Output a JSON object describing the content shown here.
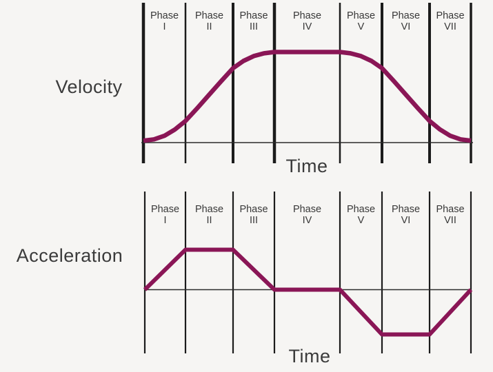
{
  "background": "#f6f5f3",
  "colors": {
    "curve": "#8a1656",
    "line": "#1b1b1b",
    "axis": "#2b2b2b",
    "text": "#3b3b3b"
  },
  "labels": {
    "velocity": "Velocity",
    "acceleration": "Acceleration",
    "time_top": "Time",
    "time_bottom": "Time",
    "phase_word": "Phase",
    "phase_numerals": [
      "I",
      "II",
      "III",
      "IV",
      "V",
      "VI",
      "VII"
    ]
  },
  "chart_data": [
    {
      "type": "line",
      "title": "",
      "xlabel": "Time",
      "ylabel": "Velocity",
      "categories": [
        "Phase I",
        "Phase II",
        "Phase III",
        "Phase IV",
        "Phase V",
        "Phase VI",
        "Phase VII"
      ],
      "x_unit": "phase-boundary index (0 = start of Phase I, 7 = end of Phase VII)",
      "ylim": [
        0,
        1
      ],
      "grid": "vertical phase boundary lines",
      "legend": "none",
      "series": [
        {
          "name": "Velocity",
          "x": [
            0,
            0.25,
            0.5,
            0.75,
            1,
            1.25,
            1.5,
            1.75,
            2,
            2.25,
            2.5,
            2.75,
            3,
            4,
            4.25,
            4.5,
            4.75,
            5,
            5.25,
            5.5,
            5.75,
            6,
            6.25,
            6.5,
            6.75,
            7
          ],
          "y": [
            0.01,
            0.025,
            0.065,
            0.135,
            0.23,
            0.375,
            0.525,
            0.675,
            0.82,
            0.9,
            0.955,
            0.985,
            1,
            1,
            0.985,
            0.955,
            0.9,
            0.82,
            0.675,
            0.525,
            0.375,
            0.23,
            0.135,
            0.065,
            0.025,
            0.01
          ]
        }
      ]
    },
    {
      "type": "line",
      "title": "",
      "xlabel": "Time",
      "ylabel": "Acceleration",
      "categories": [
        "Phase I",
        "Phase II",
        "Phase III",
        "Phase IV",
        "Phase V",
        "Phase VI",
        "Phase VII"
      ],
      "x_unit": "phase-boundary index (0 = start of Phase I, 7 = end of Phase VII)",
      "ylim": [
        -1,
        1
      ],
      "grid": "vertical phase boundary lines + zero axis",
      "legend": "none",
      "series": [
        {
          "name": "Acceleration",
          "x": [
            0,
            1,
            2,
            3,
            4,
            5,
            6,
            7
          ],
          "y": [
            0,
            1,
            1,
            0,
            0,
            -1,
            -1,
            0
          ]
        }
      ]
    }
  ]
}
